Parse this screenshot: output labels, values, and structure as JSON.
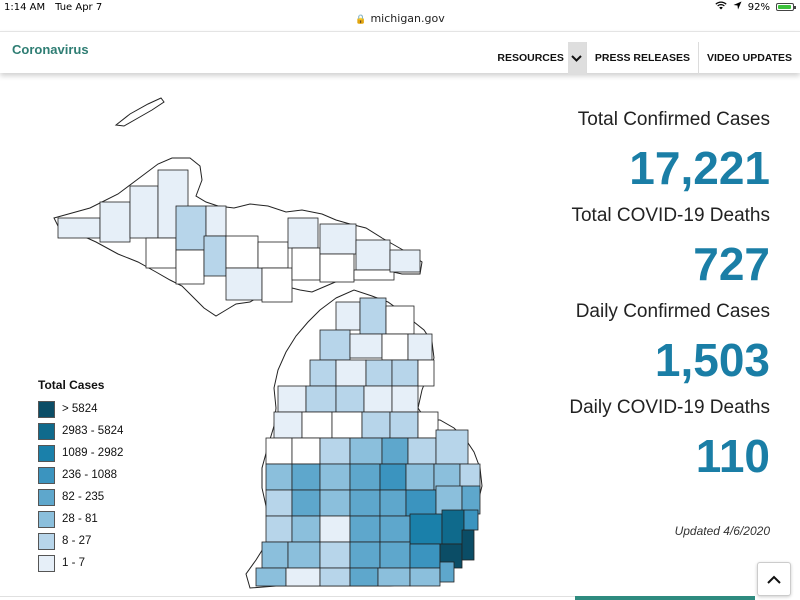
{
  "status_bar": {
    "time": "1:14 AM",
    "date": "Tue Apr 7",
    "battery": "92%",
    "battery_level": 0.92
  },
  "url": "michigan.gov",
  "header": {
    "brand": "Coronavirus",
    "nav": [
      {
        "label": "RESOURCES",
        "has_dropdown": true
      },
      {
        "label": "PRESS RELEASES"
      },
      {
        "label": "VIDEO UPDATES"
      }
    ]
  },
  "stats": [
    {
      "label": "Total Confirmed Cases",
      "value": "17,221"
    },
    {
      "label": "Total COVID-19 Deaths",
      "value": "727"
    },
    {
      "label": "Daily Confirmed Cases",
      "value": "1,503"
    },
    {
      "label": "Daily COVID-19 Deaths",
      "value": "110"
    }
  ],
  "updated": "Updated 4/6/2020",
  "legend": {
    "title": "Total Cases",
    "items": [
      {
        "label": "> 5824",
        "color": "#0b4d66"
      },
      {
        "label": "2983 - 5824",
        "color": "#0f6a8c"
      },
      {
        "label": "1089 - 2982",
        "color": "#1a80aa"
      },
      {
        "label": "236 - 1088",
        "color": "#3b94bf"
      },
      {
        "label": "82 - 235",
        "color": "#5ea7cc"
      },
      {
        "label": "28 - 81",
        "color": "#8bbfdc"
      },
      {
        "label": "8 - 27",
        "color": "#b7d5ea"
      },
      {
        "label": "1 - 7",
        "color": "#e6eff8"
      }
    ]
  },
  "colors": {
    "brand": "#2e7d73",
    "stat_value": "#1a7ea6",
    "map_stroke": "#222222"
  },
  "icons": {
    "lock": "lock-icon",
    "wifi": "wifi-icon",
    "location": "location-arrow-icon",
    "chevron": "chevron-down-icon",
    "scroll_top": "chevron-up-icon"
  }
}
